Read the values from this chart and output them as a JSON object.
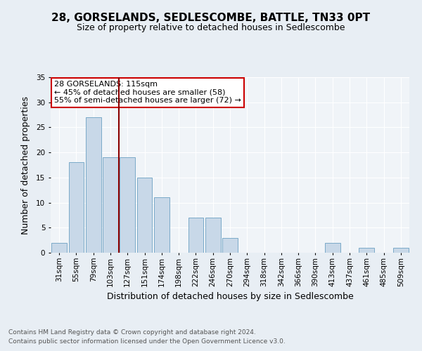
{
  "title": "28, GORSELANDS, SEDLESCOMBE, BATTLE, TN33 0PT",
  "subtitle": "Size of property relative to detached houses in Sedlescombe",
  "xlabel": "Distribution of detached houses by size in Sedlescombe",
  "ylabel": "Number of detached properties",
  "footnote1": "Contains HM Land Registry data © Crown copyright and database right 2024.",
  "footnote2": "Contains public sector information licensed under the Open Government Licence v3.0.",
  "annotation_line1": "28 GORSELANDS: 115sqm",
  "annotation_line2": "← 45% of detached houses are smaller (58)",
  "annotation_line3": "55% of semi-detached houses are larger (72) →",
  "bar_labels": [
    "31sqm",
    "55sqm",
    "79sqm",
    "103sqm",
    "127sqm",
    "151sqm",
    "174sqm",
    "198sqm",
    "222sqm",
    "246sqm",
    "270sqm",
    "294sqm",
    "318sqm",
    "342sqm",
    "366sqm",
    "390sqm",
    "413sqm",
    "437sqm",
    "461sqm",
    "485sqm",
    "509sqm"
  ],
  "bar_values": [
    2,
    18,
    27,
    19,
    19,
    15,
    11,
    0,
    7,
    7,
    3,
    0,
    0,
    0,
    0,
    0,
    2,
    0,
    1,
    0,
    1
  ],
  "bar_color": "#c8d8e8",
  "bar_edge_color": "#7aaac8",
  "vline_x": 3.5,
  "vline_color": "#8b0000",
  "bg_color": "#e8eef4",
  "plot_bg_color": "#f0f4f8",
  "grid_color": "#ffffff",
  "annotation_box_color": "#ffffff",
  "annotation_border_color": "#cc0000",
  "ylim": [
    0,
    35
  ],
  "yticks": [
    0,
    5,
    10,
    15,
    20,
    25,
    30,
    35
  ],
  "title_fontsize": 11,
  "subtitle_fontsize": 9,
  "ylabel_fontsize": 9,
  "xlabel_fontsize": 9,
  "tick_fontsize": 7.5,
  "annotation_fontsize": 8,
  "footnote_fontsize": 6.5
}
